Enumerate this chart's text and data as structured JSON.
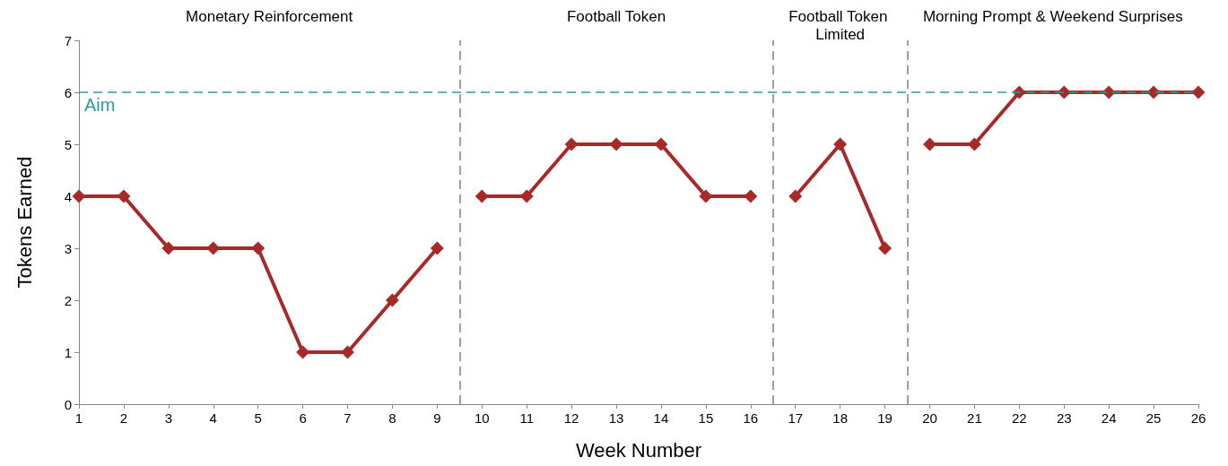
{
  "chart_data": {
    "type": "line",
    "xlabel": "Week Number",
    "ylabel": "Tokens Earned",
    "xlim": [
      1,
      26
    ],
    "xticks": [
      1,
      2,
      3,
      4,
      5,
      6,
      7,
      8,
      9,
      10,
      11,
      12,
      13,
      14,
      15,
      16,
      17,
      18,
      19,
      20,
      21,
      22,
      23,
      24,
      25,
      26
    ],
    "ylim": [
      0,
      7
    ],
    "yticks": [
      0,
      1,
      2,
      3,
      4,
      5,
      6,
      7
    ],
    "grid": false,
    "marker": "diamond",
    "line_style": "solid",
    "series": [
      {
        "color": "#a82a28",
        "x": [
          1,
          2,
          3,
          4,
          5,
          6,
          7,
          8,
          9
        ],
        "values": [
          4,
          4,
          3,
          3,
          3,
          1,
          1,
          2,
          3
        ]
      },
      {
        "color": "#a82a28",
        "x": [
          10,
          11,
          12,
          13,
          14,
          15,
          16
        ],
        "values": [
          4,
          4,
          5,
          5,
          5,
          4,
          4
        ]
      },
      {
        "color": "#a82a28",
        "x": [
          17,
          18,
          19
        ],
        "values": [
          4,
          5,
          3
        ]
      },
      {
        "color": "#a82a28",
        "x": [
          20,
          21,
          22,
          23,
          24,
          25,
          26
        ],
        "values": [
          5,
          5,
          6,
          6,
          6,
          6,
          6
        ]
      }
    ],
    "ref_lines": [
      {
        "axis": "y",
        "value": 6,
        "label": "Aim",
        "color": "#2a9d9a",
        "line_style": "dashed"
      },
      {
        "axis": "x",
        "value": 9.5,
        "label": null,
        "color": "#808080",
        "line_style": "dashed"
      },
      {
        "axis": "x",
        "value": 16.5,
        "label": null,
        "color": "#808080",
        "line_style": "dashed"
      },
      {
        "axis": "x",
        "value": 19.5,
        "label": null,
        "color": "#808080",
        "line_style": "dashed"
      }
    ],
    "annotations": [
      "Monetary Reinforcement",
      "Football Token",
      "Football Token Limited",
      "Morning Prompt & Weekend Surprises"
    ]
  }
}
